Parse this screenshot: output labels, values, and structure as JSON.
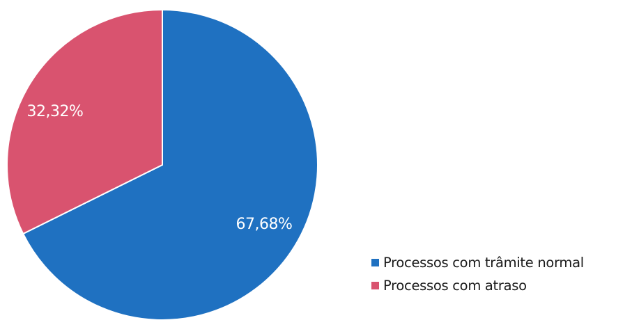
{
  "chart_data": {
    "type": "pie",
    "title": "",
    "slices": [
      {
        "name": "Processos com trâmite normal",
        "value": 67.68,
        "label": "67,68%",
        "color": "#1f71c1"
      },
      {
        "name": "Processos com atraso",
        "value": 32.32,
        "label": "32,32%",
        "color": "#d9536f"
      }
    ],
    "start_angle_from_top_deg": 0,
    "direction": "clockwise",
    "legend_position": "bottom-right"
  }
}
